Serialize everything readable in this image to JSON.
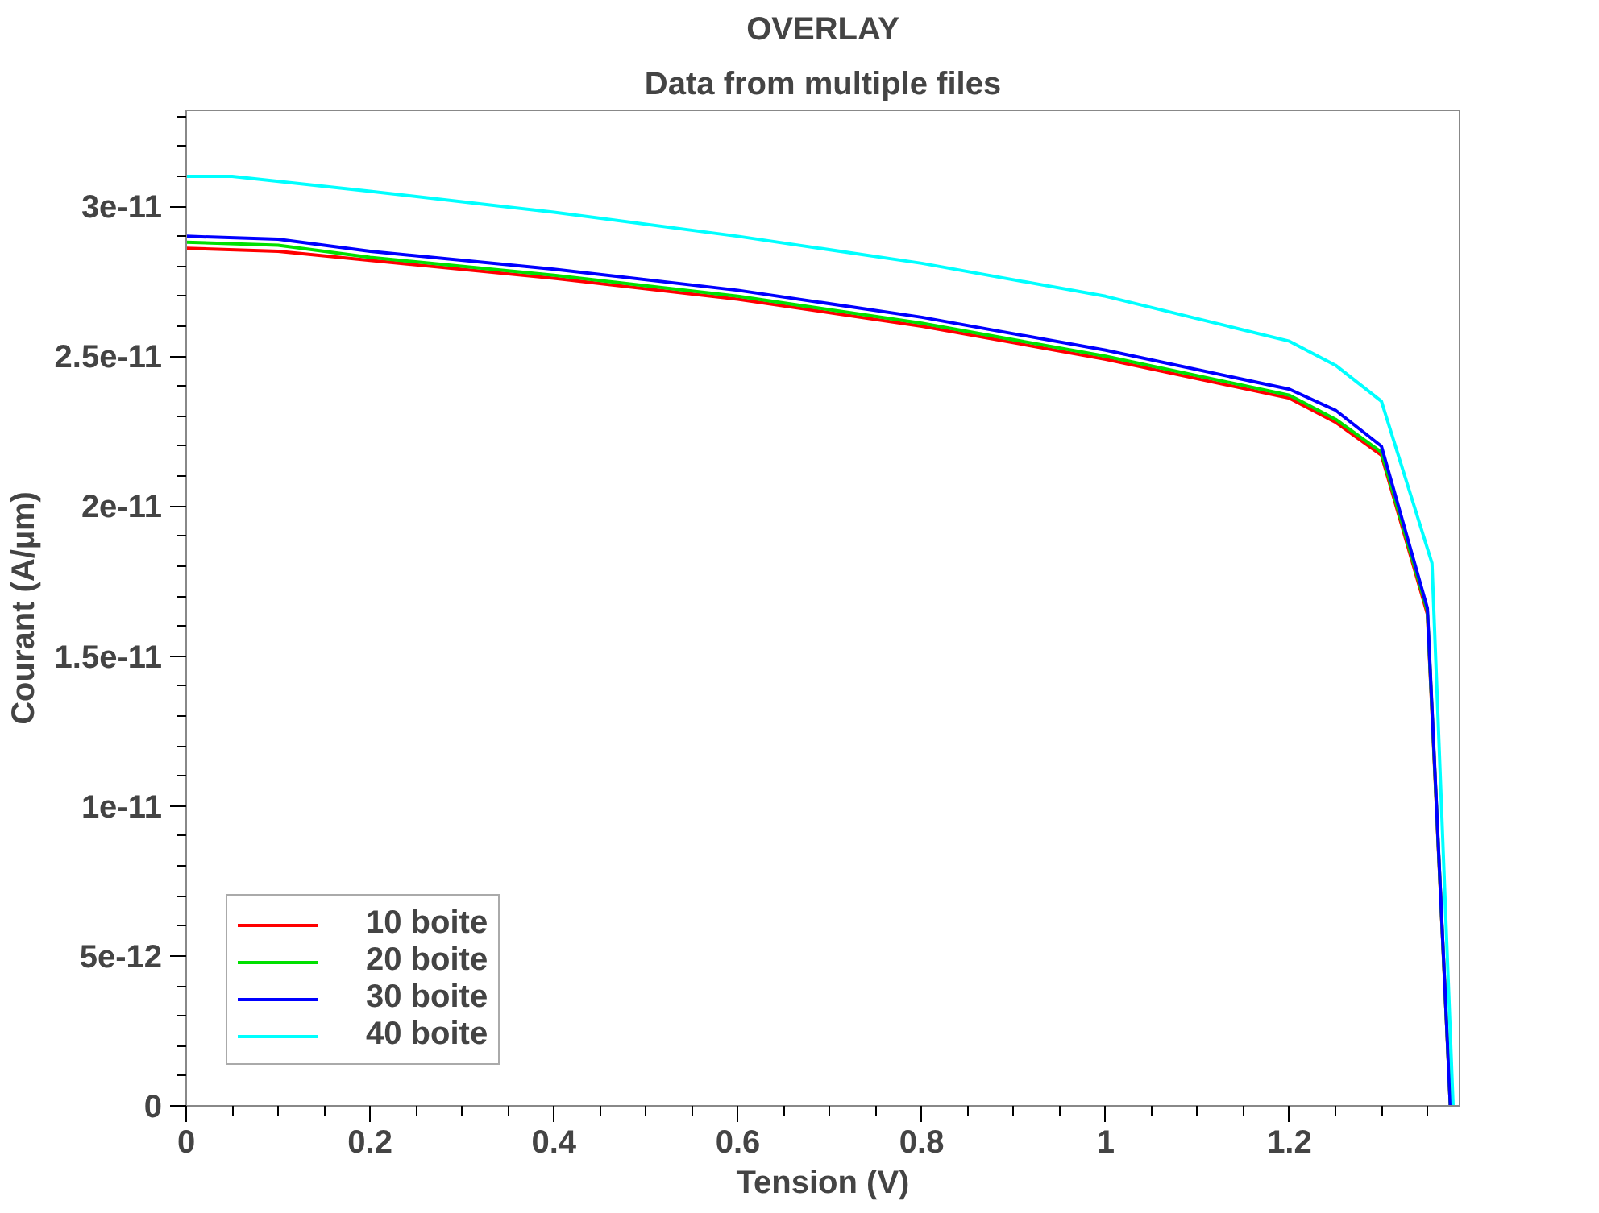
{
  "chart_data": {
    "type": "line",
    "title": "OVERLAY",
    "subtitle": "Data from multiple files",
    "xlabel": "Tension (V)",
    "ylabel": "Courant (A/µm)",
    "xlim": [
      0,
      1.385
    ],
    "ylim": [
      0,
      3.32e-11
    ],
    "xticks": [
      0,
      0.2,
      0.4,
      0.6,
      0.8,
      1,
      1.2
    ],
    "yticks": [
      0,
      {
        "value": 5e-12,
        "label": "5e-12"
      },
      {
        "value": 1e-11,
        "label": "1e-11"
      },
      {
        "value": 1.5e-11,
        "label": "1.5e-11"
      },
      {
        "value": 2e-11,
        "label": "2e-11"
      },
      {
        "value": 2.5e-11,
        "label": "2.5e-11"
      },
      {
        "value": 3e-11,
        "label": "3e-11"
      }
    ],
    "grid": false,
    "legend": "bottom left",
    "x": [
      0,
      0.1,
      0.2,
      0.4,
      0.6,
      0.8,
      1.0,
      1.2,
      1.25,
      1.3,
      1.35,
      1.375
    ],
    "series": [
      {
        "name": "10 boite",
        "color": "#ff0000",
        "values": [
          2.86e-11,
          2.85e-11,
          2.82e-11,
          2.76e-11,
          2.69e-11,
          2.6e-11,
          2.49e-11,
          2.36e-11,
          2.28e-11,
          2.17e-11,
          1.64e-11,
          0
        ]
      },
      {
        "name": "20 boite",
        "color": "#00e000",
        "values": [
          2.88e-11,
          2.87e-11,
          2.83e-11,
          2.77e-11,
          2.7e-11,
          2.61e-11,
          2.5e-11,
          2.37e-11,
          2.29e-11,
          2.18e-11,
          1.65e-11,
          0
        ]
      },
      {
        "name": "30 boite",
        "color": "#0000ff",
        "values": [
          2.9e-11,
          2.89e-11,
          2.85e-11,
          2.79e-11,
          2.72e-11,
          2.63e-11,
          2.52e-11,
          2.39e-11,
          2.32e-11,
          2.2e-11,
          1.66e-11,
          0
        ]
      },
      {
        "name": "40 boite",
        "x": [
          0,
          0.05,
          0.2,
          0.4,
          0.6,
          0.8,
          1.0,
          1.2,
          1.25,
          1.3,
          1.355,
          1.378
        ],
        "color": "#00ffff",
        "values": [
          3.1e-11,
          3.1e-11,
          3.05e-11,
          2.98e-11,
          2.9e-11,
          2.81e-11,
          2.7e-11,
          2.55e-11,
          2.47e-11,
          2.35e-11,
          1.81e-11,
          0
        ]
      }
    ]
  }
}
